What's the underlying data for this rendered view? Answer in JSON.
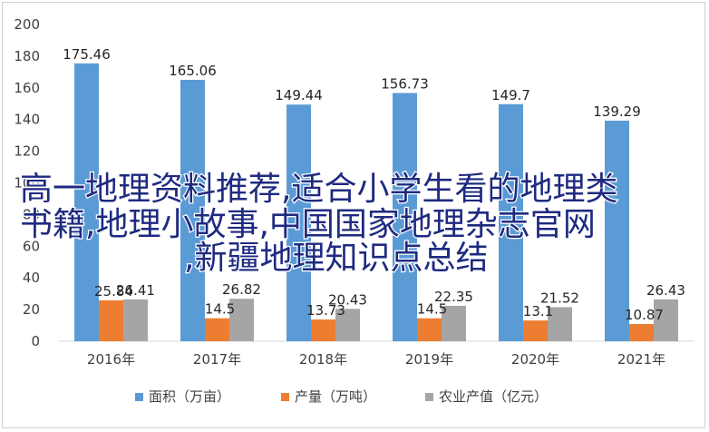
{
  "chart_data": {
    "type": "bar",
    "categories": [
      "2016年",
      "2017年",
      "2018年",
      "2019年",
      "2020年",
      "2021年"
    ],
    "series": [
      {
        "name": "面积（万亩）",
        "color": "#5b9bd5",
        "values": [
          175.46,
          165.06,
          149.44,
          156.73,
          149.7,
          139.29
        ]
      },
      {
        "name": "产量（万吨）",
        "color": "#ed7d31",
        "values": [
          25.84,
          14.5,
          13.73,
          14.5,
          13.1,
          10.87
        ]
      },
      {
        "name": "农业产值（亿元）",
        "color": "#a5a5a5",
        "values": [
          26.41,
          26.82,
          20.43,
          22.35,
          21.52,
          26.43
        ]
      }
    ],
    "y_ticks": [
      "0",
      "20",
      "40",
      "60",
      "80",
      "100",
      "120",
      "140",
      "160",
      "180",
      "200"
    ],
    "ylim": [
      0,
      200
    ],
    "legend_position": "bottom",
    "grid": false
  },
  "overlay": {
    "line1": "高一地理资料推荐,适合小学生看的地理类",
    "line2": "书籍,地理小故事,中国国家地理杂志官网",
    "line3": ",新疆地理知识点总结"
  }
}
